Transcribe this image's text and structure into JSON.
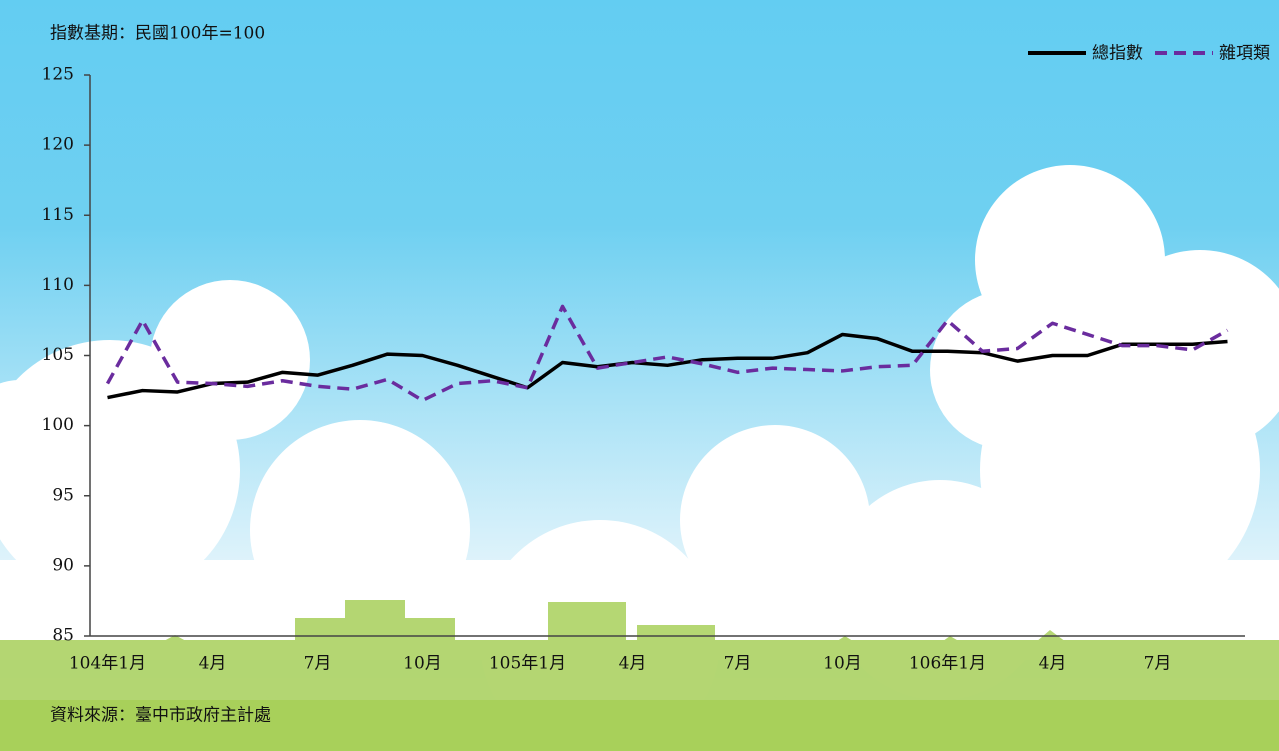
{
  "chart_data": {
    "type": "line",
    "unit_note": "指數基期：民國100年=100",
    "source": "資料來源：臺中市政府主計處",
    "categories": [
      "104年1月",
      null,
      null,
      "4月",
      null,
      null,
      "7月",
      null,
      null,
      "10月",
      null,
      null,
      "105年1月",
      null,
      null,
      "4月",
      null,
      null,
      "7月",
      null,
      null,
      "10月",
      null,
      null,
      "106年1月",
      null,
      null,
      "4月",
      null,
      null,
      "7月",
      null,
      null
    ],
    "series": [
      {
        "name": "總指數",
        "color": "#000000",
        "dash": false,
        "values": [
          102.0,
          102.5,
          102.4,
          103.0,
          103.1,
          103.8,
          103.6,
          104.3,
          105.1,
          105.0,
          104.3,
          103.5,
          102.7,
          104.5,
          104.2,
          104.5,
          104.3,
          104.7,
          104.8,
          104.8,
          105.2,
          106.5,
          106.2,
          105.3,
          105.3,
          105.2,
          104.6,
          105.0,
          105.0,
          105.8,
          105.8,
          105.8,
          106.0
        ]
      },
      {
        "name": "雜項類",
        "color": "#6a2c9e",
        "dash": true,
        "values": [
          103.0,
          107.5,
          103.1,
          103.0,
          102.8,
          103.2,
          102.8,
          102.6,
          103.3,
          101.8,
          103.0,
          103.2,
          102.7,
          108.5,
          104.1,
          104.5,
          104.9,
          104.4,
          103.8,
          104.1,
          104.0,
          103.9,
          104.2,
          104.3,
          107.5,
          105.3,
          105.5,
          107.3,
          106.5,
          105.7,
          105.7,
          105.4,
          106.8
        ]
      }
    ],
    "ylim": [
      85,
      125
    ],
    "yticks": [
      85,
      90,
      95,
      100,
      105,
      110,
      115,
      120,
      125
    ],
    "legend": "top-right",
    "grid": false
  }
}
